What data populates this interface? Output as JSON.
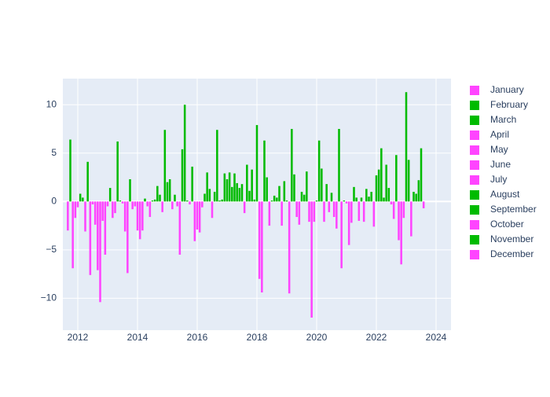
{
  "chart_data": {
    "type": "bar",
    "x": [
      "2011-09",
      "2011-10",
      "2011-11",
      "2011-12",
      "2012-01",
      "2012-02",
      "2012-03",
      "2012-04",
      "2012-05",
      "2012-06",
      "2012-07",
      "2012-08",
      "2012-09",
      "2012-10",
      "2012-11",
      "2012-12",
      "2013-01",
      "2013-02",
      "2013-03",
      "2013-04",
      "2013-05",
      "2013-06",
      "2013-07",
      "2013-08",
      "2013-09",
      "2013-10",
      "2013-11",
      "2013-12",
      "2014-01",
      "2014-02",
      "2014-03",
      "2014-04",
      "2014-05",
      "2014-06",
      "2014-07",
      "2014-08",
      "2014-09",
      "2014-10",
      "2014-11",
      "2014-12",
      "2015-01",
      "2015-02",
      "2015-03",
      "2015-04",
      "2015-05",
      "2015-06",
      "2015-07",
      "2015-08",
      "2015-09",
      "2015-10",
      "2015-11",
      "2015-12",
      "2016-01",
      "2016-02",
      "2016-03",
      "2016-04",
      "2016-05",
      "2016-06",
      "2016-07",
      "2016-08",
      "2016-09",
      "2016-10",
      "2016-11",
      "2016-12",
      "2017-01",
      "2017-02",
      "2017-03",
      "2017-04",
      "2017-05",
      "2017-06",
      "2017-07",
      "2017-08",
      "2017-09",
      "2017-10",
      "2017-11",
      "2017-12",
      "2018-01",
      "2018-02",
      "2018-03",
      "2018-04",
      "2018-05",
      "2018-06",
      "2018-07",
      "2018-08",
      "2018-09",
      "2018-10",
      "2018-11",
      "2018-12",
      "2019-01",
      "2019-02",
      "2019-03",
      "2019-04",
      "2019-05",
      "2019-06",
      "2019-07",
      "2019-08",
      "2019-09",
      "2019-10",
      "2019-11",
      "2019-12",
      "2020-01",
      "2020-02",
      "2020-03",
      "2020-04",
      "2020-05",
      "2020-06",
      "2020-07",
      "2020-08",
      "2020-09",
      "2020-10",
      "2020-11",
      "2020-12",
      "2021-01",
      "2021-02",
      "2021-03",
      "2021-04",
      "2021-05",
      "2021-06",
      "2021-07",
      "2021-08",
      "2021-09",
      "2021-10",
      "2021-11",
      "2021-12",
      "2022-01",
      "2022-02",
      "2022-03",
      "2022-04",
      "2022-05",
      "2022-06",
      "2022-07",
      "2022-08",
      "2022-09",
      "2022-10",
      "2022-11",
      "2022-12",
      "2023-01",
      "2023-02",
      "2023-03",
      "2023-04",
      "2023-05",
      "2023-06",
      "2023-07",
      "2023-08"
    ],
    "values": [
      -3.0,
      6.4,
      -6.9,
      -1.7,
      -0.6,
      0.8,
      0.4,
      -3.1,
      4.1,
      -7.6,
      -0.3,
      -2.4,
      -7.1,
      -10.4,
      -2.0,
      -5.5,
      -0.5,
      1.4,
      -1.7,
      -1.2,
      6.2,
      0.1,
      -0.2,
      -3.1,
      -7.4,
      2.3,
      -0.8,
      -0.5,
      -3.0,
      -3.9,
      -3.0,
      0.3,
      -0.5,
      -1.6,
      0.1,
      0.2,
      1.6,
      0.7,
      -1.1,
      7.4,
      2.0,
      2.3,
      -0.8,
      0.7,
      -0.5,
      -5.5,
      5.4,
      10.0,
      0.1,
      -0.3,
      3.6,
      -4.1,
      -2.9,
      -3.2,
      -0.6,
      0.8,
      3.0,
      1.3,
      -1.7,
      1.0,
      7.4,
      0.1,
      0.2,
      2.9,
      2.3,
      3.0,
      1.5,
      2.9,
      1.9,
      1.4,
      1.8,
      -1.2,
      3.8,
      1.1,
      3.3,
      0.2,
      7.9,
      -8.0,
      -9.4,
      6.3,
      2.5,
      -2.5,
      0.1,
      0.6,
      0.4,
      1.6,
      -2.5,
      2.1,
      0.1,
      -9.5,
      7.5,
      2.8,
      -1.6,
      -2.4,
      1.0,
      0.7,
      3.1,
      -2.1,
      -12.0,
      -2.1,
      0.1,
      6.3,
      3.4,
      -2.1,
      1.8,
      -1.1,
      0.9,
      -1.6,
      -2.8,
      7.5,
      -6.9,
      0.1,
      -0.2,
      -4.5,
      -2.2,
      1.5,
      0.4,
      -2.0,
      0.4,
      -2.1,
      1.3,
      0.5,
      1.0,
      -2.6,
      2.7,
      3.3,
      5.5,
      0.4,
      3.8,
      1.4,
      -0.3,
      -1.8,
      4.8,
      -4.0,
      -6.5,
      -1.7,
      11.3,
      4.3,
      -3.6,
      1.0,
      0.8,
      2.2,
      5.5,
      -0.7
    ],
    "positive_color": "#00bb00",
    "negative_color": "#ff44ff",
    "legend": [
      {
        "name": "January",
        "color": "#ff44ff"
      },
      {
        "name": "February",
        "color": "#00bb00"
      },
      {
        "name": "March",
        "color": "#00bb00"
      },
      {
        "name": "April",
        "color": "#ff44ff"
      },
      {
        "name": "May",
        "color": "#ff44ff"
      },
      {
        "name": "June",
        "color": "#ff44ff"
      },
      {
        "name": "July",
        "color": "#ff44ff"
      },
      {
        "name": "August",
        "color": "#00bb00"
      },
      {
        "name": "September",
        "color": "#00bb00"
      },
      {
        "name": "October",
        "color": "#ff44ff"
      },
      {
        "name": "November",
        "color": "#00bb00"
      },
      {
        "name": "December",
        "color": "#ff44ff"
      }
    ],
    "xlim": [
      "2011-07",
      "2024-07"
    ],
    "xticks": [
      2012,
      2014,
      2016,
      2018,
      2020,
      2022,
      2024
    ],
    "ylim": [
      -13.3,
      12.7
    ],
    "yticks": [
      {
        "value": -10,
        "label": "−10"
      },
      {
        "value": -5,
        "label": "−5"
      },
      0,
      5,
      10
    ],
    "grid": true
  }
}
